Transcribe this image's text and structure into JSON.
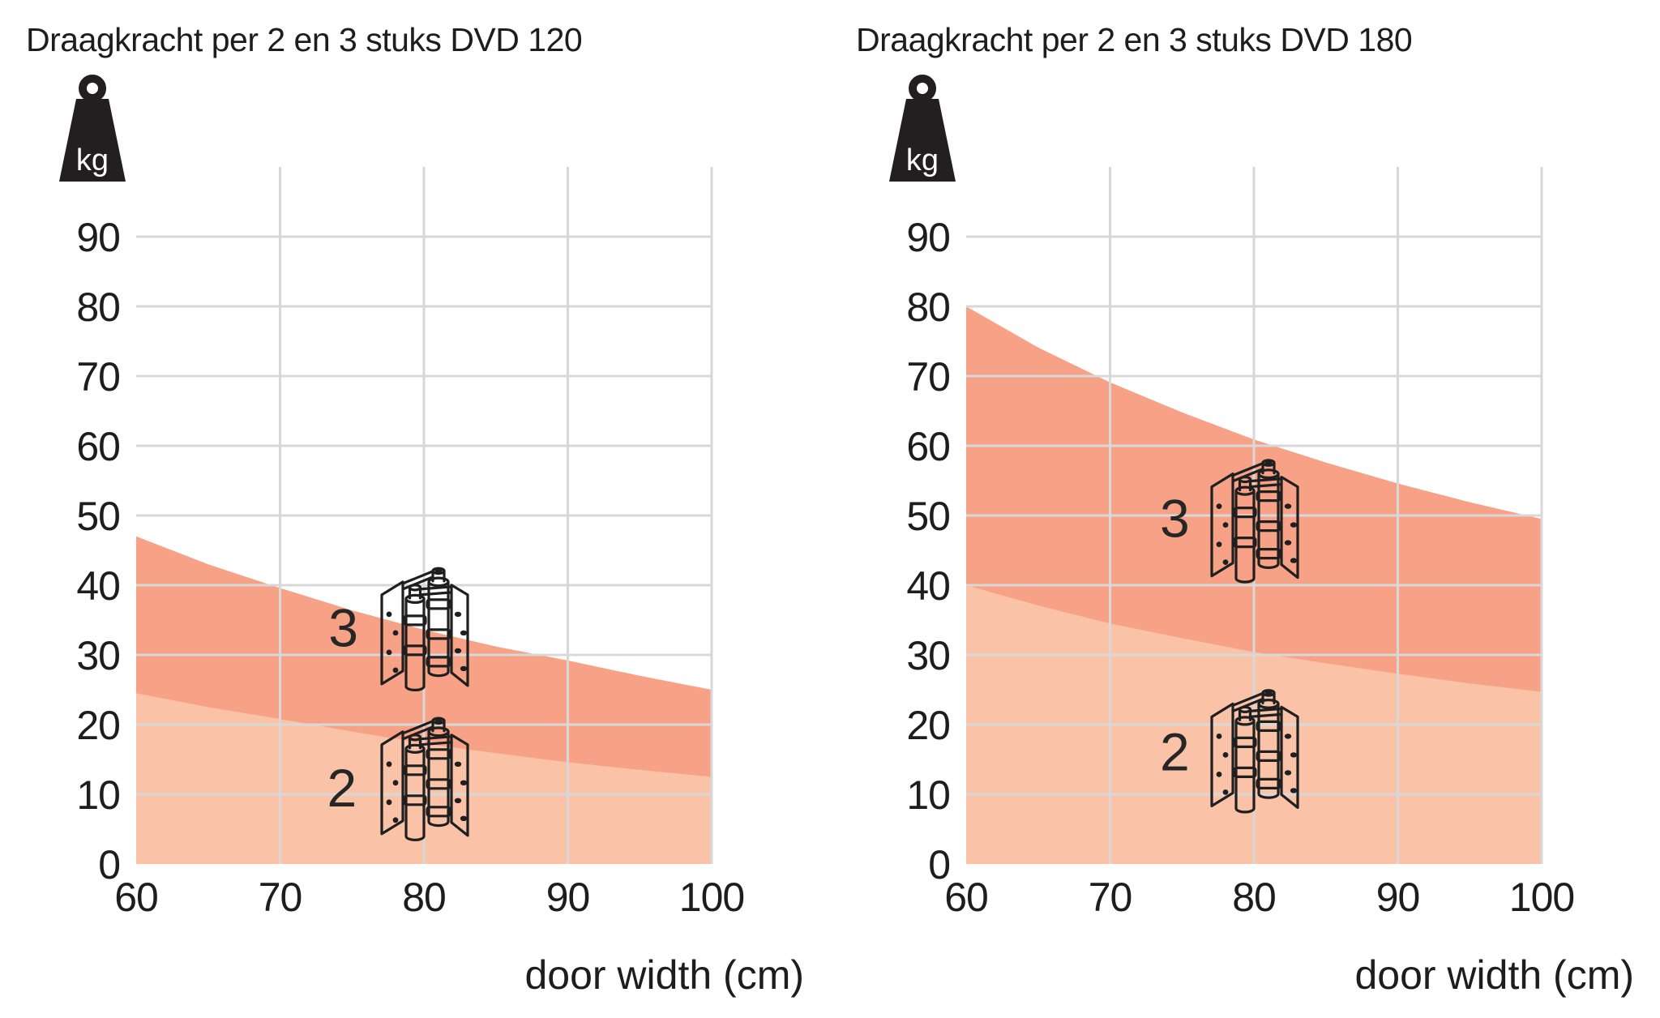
{
  "icons": {
    "weight_label": "kg"
  },
  "chart_data": [
    {
      "type": "area",
      "title": "Draagkracht per 2 en 3 stuks DVD 120",
      "xlabel": "door width (cm)",
      "x_ticks": [
        60,
        70,
        80,
        90,
        100
      ],
      "y_ticks": [
        0,
        10,
        20,
        30,
        40,
        50,
        60,
        70,
        80,
        90
      ],
      "xlim": [
        60,
        100
      ],
      "ylim": [
        0,
        100
      ],
      "grid": true,
      "x": [
        60,
        65,
        70,
        75,
        80,
        85,
        90,
        95,
        100
      ],
      "series": [
        {
          "name": "3 hinges",
          "label": "3",
          "color": "#F7A287",
          "values": [
            47.0,
            43.0,
            39.6,
            36.4,
            33.6,
            31.2,
            29.2,
            27.0,
            25.0
          ],
          "label_at": {
            "cm": 74.4,
            "kg": 33.8
          },
          "icon_at": {
            "cm": 80,
            "kg": 33.5
          }
        },
        {
          "name": "2 hinges",
          "label": "2",
          "color": "#FAC3A8",
          "values": [
            24.5,
            22.5,
            20.8,
            19.0,
            17.3,
            15.9,
            14.6,
            13.5,
            12.5
          ],
          "label_at": {
            "cm": 74.3,
            "kg": 10.8
          },
          "icon_at": {
            "cm": 80,
            "kg": 12.0
          }
        }
      ]
    },
    {
      "type": "area",
      "title": "Draagkracht per 2 en 3 stuks DVD 180",
      "xlabel": "door width (cm)",
      "x_ticks": [
        60,
        70,
        80,
        90,
        100
      ],
      "y_ticks": [
        0,
        10,
        20,
        30,
        40,
        50,
        60,
        70,
        80,
        90
      ],
      "xlim": [
        60,
        100
      ],
      "ylim": [
        0,
        100
      ],
      "grid": true,
      "x": [
        60,
        65,
        70,
        75,
        80,
        85,
        90,
        95,
        100
      ],
      "series": [
        {
          "name": "3 hinges",
          "label": "3",
          "color": "#F7A287",
          "values": [
            80.0,
            74.1,
            69.1,
            64.8,
            60.9,
            57.6,
            54.6,
            51.9,
            49.5
          ],
          "label_at": {
            "cm": 74.5,
            "kg": 49.5
          },
          "icon_at": {
            "cm": 80,
            "kg": 49.0
          }
        },
        {
          "name": "2 hinges",
          "label": "2",
          "color": "#FAC3A8",
          "values": [
            40.0,
            37.1,
            34.5,
            32.4,
            30.4,
            28.8,
            27.3,
            25.9,
            24.7
          ],
          "label_at": {
            "cm": 74.5,
            "kg": 16.0
          },
          "icon_at": {
            "cm": 80,
            "kg": 16.0
          }
        }
      ]
    }
  ],
  "style": {
    "gridline_color": "#D8D8D8",
    "text_color": "#1d1d1d",
    "hinge_stroke": "#1f1f1f",
    "weight_fill": "#231f20"
  }
}
